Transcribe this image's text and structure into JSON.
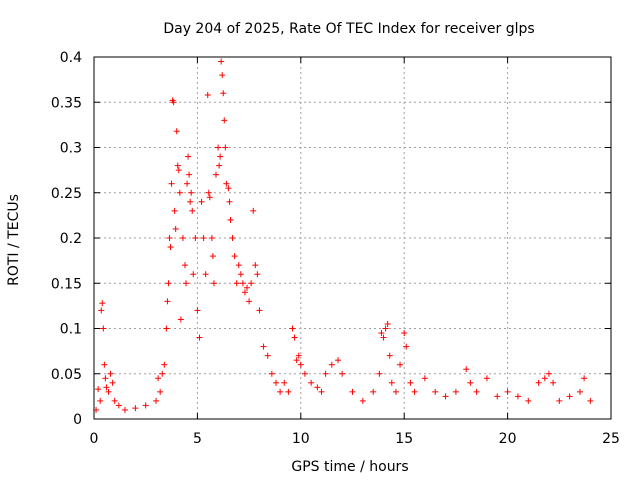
{
  "chart_data": {
    "type": "scatter",
    "title": "Day 204 of 2025, Rate Of TEC Index for receiver glps",
    "xlabel": "GPS time / hours",
    "ylabel": "ROTI / TECUs",
    "xlim": [
      0,
      25
    ],
    "ylim": [
      0,
      0.4
    ],
    "xticks": [
      0,
      5,
      10,
      15,
      20,
      25
    ],
    "xtick_labels": [
      "0",
      "5",
      "10",
      "15",
      "20",
      "25"
    ],
    "yticks": [
      0,
      0.05,
      0.1,
      0.15,
      0.2,
      0.25,
      0.3,
      0.35,
      0.4
    ],
    "ytick_labels": [
      "0",
      "0.05",
      "0.1",
      "0.15",
      "0.2",
      "0.25",
      "0.3",
      "0.35",
      "0.4"
    ],
    "grid": true,
    "marker": "+",
    "color": "#ff0000",
    "series": [
      {
        "values": [
          [
            0.1,
            0.01
          ],
          [
            0.2,
            0.033
          ],
          [
            0.3,
            0.02
          ],
          [
            0.35,
            0.12
          ],
          [
            0.4,
            0.128
          ],
          [
            0.45,
            0.1
          ],
          [
            0.5,
            0.06
          ],
          [
            0.55,
            0.045
          ],
          [
            0.6,
            0.035
          ],
          [
            0.7,
            0.03
          ],
          [
            0.8,
            0.05
          ],
          [
            0.9,
            0.04
          ],
          [
            1.0,
            0.02
          ],
          [
            1.2,
            0.015
          ],
          [
            1.5,
            0.01
          ],
          [
            2.0,
            0.012
          ],
          [
            2.5,
            0.015
          ],
          [
            3.0,
            0.02
          ],
          [
            3.1,
            0.045
          ],
          [
            3.2,
            0.03
          ],
          [
            3.3,
            0.05
          ],
          [
            3.4,
            0.06
          ],
          [
            3.5,
            0.1
          ],
          [
            3.55,
            0.13
          ],
          [
            3.6,
            0.15
          ],
          [
            3.65,
            0.2
          ],
          [
            3.7,
            0.19
          ],
          [
            3.75,
            0.26
          ],
          [
            3.8,
            0.352
          ],
          [
            3.85,
            0.35
          ],
          [
            3.9,
            0.23
          ],
          [
            3.95,
            0.21
          ],
          [
            4.0,
            0.318
          ],
          [
            4.05,
            0.28
          ],
          [
            4.1,
            0.275
          ],
          [
            4.15,
            0.25
          ],
          [
            4.2,
            0.11
          ],
          [
            4.3,
            0.2
          ],
          [
            4.4,
            0.17
          ],
          [
            4.45,
            0.15
          ],
          [
            4.5,
            0.26
          ],
          [
            4.55,
            0.29
          ],
          [
            4.6,
            0.27
          ],
          [
            4.65,
            0.24
          ],
          [
            4.7,
            0.25
          ],
          [
            4.75,
            0.23
          ],
          [
            4.8,
            0.16
          ],
          [
            4.9,
            0.2
          ],
          [
            5.0,
            0.12
          ],
          [
            5.1,
            0.09
          ],
          [
            5.2,
            0.24
          ],
          [
            5.3,
            0.2
          ],
          [
            5.4,
            0.16
          ],
          [
            5.5,
            0.358
          ],
          [
            5.55,
            0.25
          ],
          [
            5.6,
            0.245
          ],
          [
            5.7,
            0.2
          ],
          [
            5.75,
            0.18
          ],
          [
            5.8,
            0.15
          ],
          [
            5.9,
            0.27
          ],
          [
            6.0,
            0.3
          ],
          [
            6.05,
            0.28
          ],
          [
            6.1,
            0.29
          ],
          [
            6.15,
            0.395
          ],
          [
            6.2,
            0.38
          ],
          [
            6.25,
            0.36
          ],
          [
            6.3,
            0.33
          ],
          [
            6.35,
            0.3
          ],
          [
            6.4,
            0.26
          ],
          [
            6.5,
            0.255
          ],
          [
            6.55,
            0.24
          ],
          [
            6.6,
            0.22
          ],
          [
            6.7,
            0.2
          ],
          [
            6.8,
            0.18
          ],
          [
            6.9,
            0.15
          ],
          [
            7.0,
            0.17
          ],
          [
            7.1,
            0.16
          ],
          [
            7.2,
            0.15
          ],
          [
            7.3,
            0.14
          ],
          [
            7.4,
            0.145
          ],
          [
            7.5,
            0.13
          ],
          [
            7.6,
            0.15
          ],
          [
            7.7,
            0.23
          ],
          [
            7.8,
            0.17
          ],
          [
            7.9,
            0.16
          ],
          [
            8.0,
            0.12
          ],
          [
            8.2,
            0.08
          ],
          [
            8.4,
            0.07
          ],
          [
            8.6,
            0.05
          ],
          [
            8.8,
            0.04
          ],
          [
            9.0,
            0.03
          ],
          [
            9.2,
            0.04
          ],
          [
            9.4,
            0.03
          ],
          [
            9.6,
            0.1
          ],
          [
            9.7,
            0.09
          ],
          [
            9.8,
            0.065
          ],
          [
            9.9,
            0.07
          ],
          [
            10.0,
            0.06
          ],
          [
            10.2,
            0.05
          ],
          [
            10.5,
            0.04
          ],
          [
            10.8,
            0.035
          ],
          [
            11.0,
            0.03
          ],
          [
            11.2,
            0.05
          ],
          [
            11.5,
            0.06
          ],
          [
            11.8,
            0.065
          ],
          [
            12.0,
            0.05
          ],
          [
            12.5,
            0.03
          ],
          [
            13.0,
            0.02
          ],
          [
            13.5,
            0.03
          ],
          [
            13.8,
            0.05
          ],
          [
            13.9,
            0.095
          ],
          [
            14.0,
            0.09
          ],
          [
            14.1,
            0.1
          ],
          [
            14.2,
            0.105
          ],
          [
            14.3,
            0.07
          ],
          [
            14.4,
            0.04
          ],
          [
            14.6,
            0.03
          ],
          [
            14.8,
            0.06
          ],
          [
            15.0,
            0.095
          ],
          [
            15.1,
            0.08
          ],
          [
            15.3,
            0.04
          ],
          [
            15.5,
            0.03
          ],
          [
            16.0,
            0.045
          ],
          [
            16.5,
            0.03
          ],
          [
            17.0,
            0.025
          ],
          [
            17.5,
            0.03
          ],
          [
            18.0,
            0.055
          ],
          [
            18.2,
            0.04
          ],
          [
            18.5,
            0.03
          ],
          [
            19.0,
            0.045
          ],
          [
            19.5,
            0.025
          ],
          [
            20.0,
            0.03
          ],
          [
            20.5,
            0.025
          ],
          [
            21.0,
            0.02
          ],
          [
            21.5,
            0.04
          ],
          [
            21.8,
            0.045
          ],
          [
            22.0,
            0.05
          ],
          [
            22.2,
            0.04
          ],
          [
            22.5,
            0.02
          ],
          [
            23.0,
            0.025
          ],
          [
            23.5,
            0.03
          ],
          [
            23.7,
            0.045
          ],
          [
            24.0,
            0.02
          ]
        ]
      }
    ]
  }
}
